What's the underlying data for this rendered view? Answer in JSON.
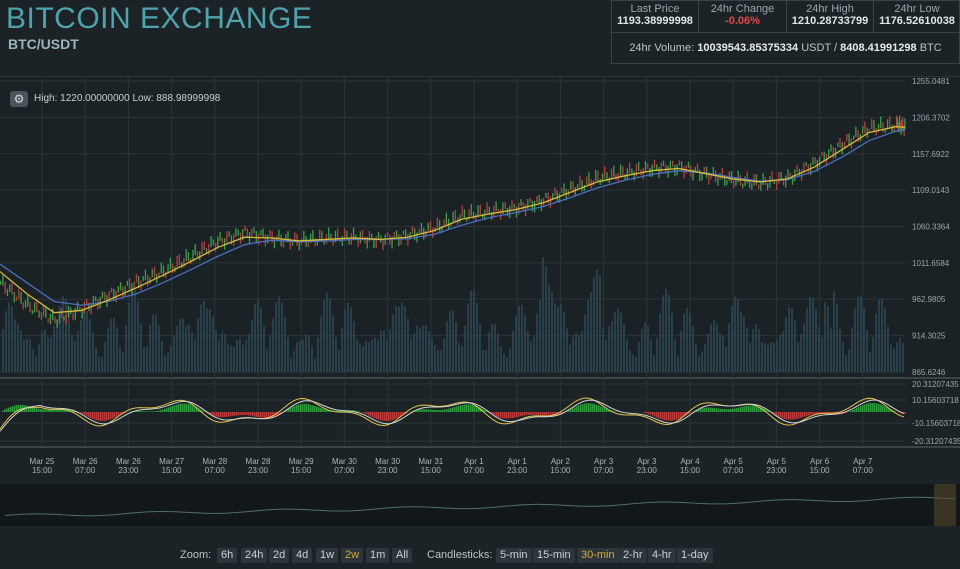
{
  "header": {
    "title": "BITCOIN EXCHANGE",
    "pair": "BTC/USDT"
  },
  "stats": [
    {
      "label": "Last Price",
      "value": "1193.38999998",
      "status": "neutral"
    },
    {
      "label": "24hr Change",
      "value": "-0.06%",
      "status": "negative"
    },
    {
      "label": "24hr High",
      "value": "1210.28733799",
      "status": "neutral"
    },
    {
      "label": "24hr Low",
      "value": "1176.52610038",
      "status": "neutral"
    }
  ],
  "volume": {
    "label": "24hr Volume:",
    "usdt": "10039543.85375334",
    "usdt_unit": "USDT",
    "sep": "/",
    "btc": "8408.41991298",
    "btc_unit": "BTC"
  },
  "chart_info": {
    "high_label": "High:",
    "high": "1220.00000000",
    "low_label": "Low:",
    "low": "888.98999998"
  },
  "chart_data": {
    "type": "line",
    "price_ticks": [
      "1255.0481",
      "1206.3702",
      "1157.6922",
      "1109.0143",
      "1060.3364",
      "1011.6584",
      "962.9805",
      "914.3025",
      "865.6246"
    ],
    "indicator_ticks": [
      "20.31207435",
      "10.15603718",
      "-10.15603718",
      "-20.31207435"
    ],
    "x_ticks": [
      [
        "Mar 25",
        "15:00"
      ],
      [
        "Mar 26",
        "07:00"
      ],
      [
        "Mar 26",
        "23:00"
      ],
      [
        "Mar 27",
        "15:00"
      ],
      [
        "Mar 28",
        "07:00"
      ],
      [
        "Mar 28",
        "23:00"
      ],
      [
        "Mar 29",
        "15:00"
      ],
      [
        "Mar 30",
        "07:00"
      ],
      [
        "Mar 30",
        "23:00"
      ],
      [
        "Mar 31",
        "15:00"
      ],
      [
        "Apr 1",
        "07:00"
      ],
      [
        "Apr 1",
        "23:00"
      ],
      [
        "Apr 2",
        "15:00"
      ],
      [
        "Apr 3",
        "07:00"
      ],
      [
        "Apr 3",
        "23:00"
      ],
      [
        "Apr 4",
        "15:00"
      ],
      [
        "Apr 5",
        "07:00"
      ],
      [
        "Apr 5",
        "23:00"
      ],
      [
        "Apr 6",
        "15:00"
      ],
      [
        "Apr 7",
        "07:00"
      ]
    ],
    "ylim": [
      865.6246,
      1255.0481
    ],
    "price_series": [
      [
        0,
        985
      ],
      [
        3,
        955
      ],
      [
        6,
        935
      ],
      [
        9,
        950
      ],
      [
        12,
        968
      ],
      [
        15,
        985
      ],
      [
        18,
        1000
      ],
      [
        21,
        1020
      ],
      [
        24,
        1040
      ],
      [
        27,
        1052
      ],
      [
        30,
        1045
      ],
      [
        33,
        1040
      ],
      [
        36,
        1045
      ],
      [
        39,
        1046
      ],
      [
        42,
        1042
      ],
      [
        45,
        1048
      ],
      [
        48,
        1058
      ],
      [
        51,
        1075
      ],
      [
        54,
        1080
      ],
      [
        57,
        1085
      ],
      [
        60,
        1095
      ],
      [
        63,
        1110
      ],
      [
        66,
        1125
      ],
      [
        69,
        1132
      ],
      [
        72,
        1138
      ],
      [
        75,
        1140
      ],
      [
        78,
        1130
      ],
      [
        81,
        1122
      ],
      [
        84,
        1118
      ],
      [
        87,
        1125
      ],
      [
        90,
        1145
      ],
      [
        93,
        1170
      ],
      [
        96,
        1192
      ],
      [
        99,
        1196
      ],
      [
        100,
        1193
      ]
    ],
    "ma_fast": [
      [
        0,
        1000
      ],
      [
        3,
        970
      ],
      [
        6,
        945
      ],
      [
        9,
        948
      ],
      [
        12,
        962
      ],
      [
        15,
        978
      ],
      [
        18,
        995
      ],
      [
        21,
        1013
      ],
      [
        24,
        1032
      ],
      [
        27,
        1046
      ],
      [
        30,
        1045
      ],
      [
        33,
        1041
      ],
      [
        36,
        1043
      ],
      [
        39,
        1045
      ],
      [
        42,
        1043
      ],
      [
        45,
        1046
      ],
      [
        48,
        1055
      ],
      [
        51,
        1070
      ],
      [
        54,
        1077
      ],
      [
        57,
        1083
      ],
      [
        60,
        1092
      ],
      [
        63,
        1106
      ],
      [
        66,
        1120
      ],
      [
        69,
        1128
      ],
      [
        72,
        1135
      ],
      [
        75,
        1138
      ],
      [
        78,
        1131
      ],
      [
        81,
        1124
      ],
      [
        84,
        1120
      ],
      [
        87,
        1124
      ],
      [
        90,
        1140
      ],
      [
        93,
        1163
      ],
      [
        96,
        1186
      ],
      [
        99,
        1194
      ],
      [
        100,
        1193
      ]
    ],
    "ma_slow": [
      [
        0,
        1010
      ],
      [
        3,
        985
      ],
      [
        6,
        960
      ],
      [
        9,
        955
      ],
      [
        12,
        960
      ],
      [
        15,
        970
      ],
      [
        18,
        985
      ],
      [
        21,
        1002
      ],
      [
        24,
        1020
      ],
      [
        27,
        1036
      ],
      [
        30,
        1042
      ],
      [
        33,
        1040
      ],
      [
        36,
        1041
      ],
      [
        39,
        1043
      ],
      [
        42,
        1043
      ],
      [
        45,
        1044
      ],
      [
        48,
        1050
      ],
      [
        51,
        1062
      ],
      [
        54,
        1072
      ],
      [
        57,
        1079
      ],
      [
        60,
        1087
      ],
      [
        63,
        1099
      ],
      [
        66,
        1112
      ],
      [
        69,
        1122
      ],
      [
        72,
        1130
      ],
      [
        75,
        1135
      ],
      [
        78,
        1132
      ],
      [
        81,
        1126
      ],
      [
        84,
        1121
      ],
      [
        87,
        1123
      ],
      [
        90,
        1134
      ],
      [
        93,
        1153
      ],
      [
        96,
        1175
      ],
      [
        99,
        1188
      ],
      [
        100,
        1190
      ]
    ],
    "colors": {
      "price": "#3d9e4a",
      "ma_fast": "#d9b93a",
      "ma_slow": "#4a6fbf",
      "volume": "#2f4a55",
      "macd_pos": "#2e9a3c",
      "macd_neg": "#b83a3a"
    },
    "grid": true
  },
  "zoom": {
    "label": "Zoom:",
    "options": [
      "6h",
      "24h",
      "2d",
      "4d",
      "1w",
      "2w",
      "1m",
      "All"
    ],
    "selected": "2w"
  },
  "candlesticks": {
    "label": "Candlesticks:",
    "options": [
      "5-min",
      "15-min",
      "30-min",
      "2-hr",
      "4-hr",
      "1-day"
    ],
    "selected": "30-min"
  }
}
